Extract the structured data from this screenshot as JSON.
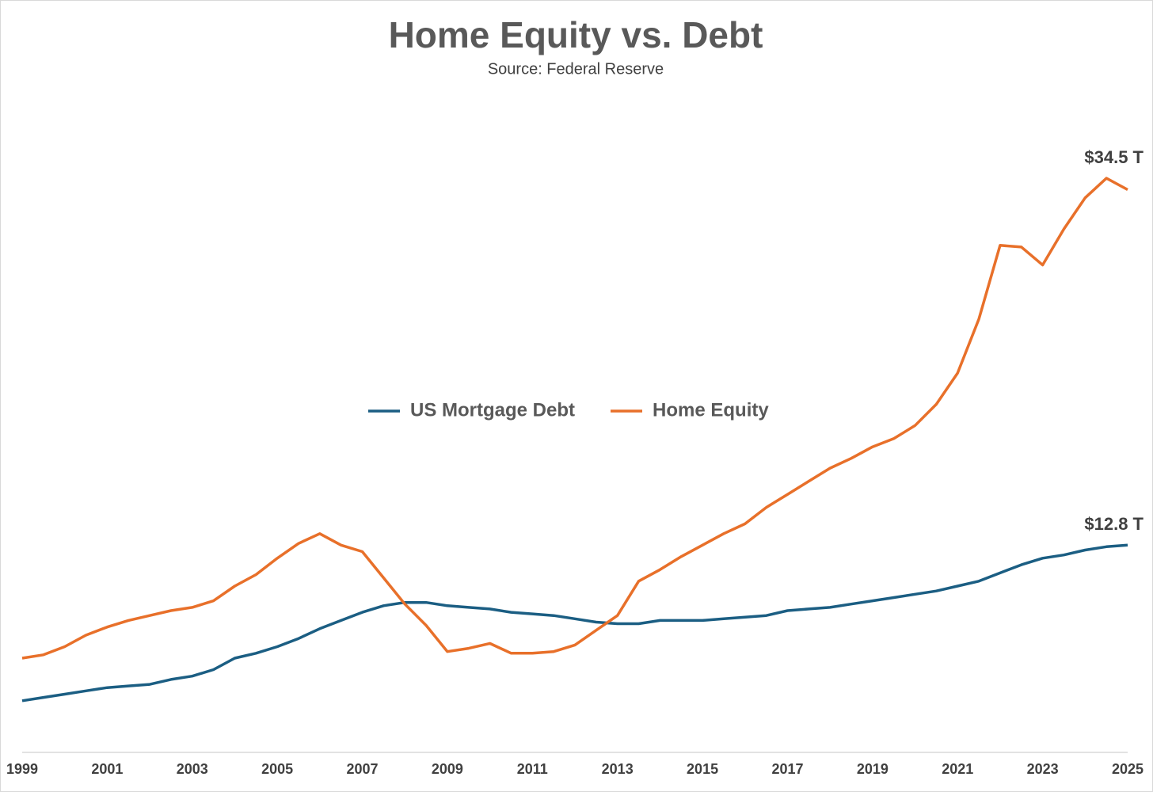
{
  "chart_data": {
    "type": "line",
    "title": "Home Equity vs. Debt",
    "subtitle": "Source: Federal Reserve",
    "x": [
      1999,
      1999.5,
      2000,
      2000.5,
      2001,
      2001.5,
      2002,
      2002.5,
      2003,
      2003.5,
      2004,
      2004.5,
      2005,
      2005.5,
      2006,
      2006.5,
      2007,
      2007.5,
      2008,
      2008.5,
      2009,
      2009.5,
      2010,
      2010.5,
      2011,
      2011.5,
      2012,
      2012.5,
      2013,
      2013.5,
      2014,
      2014.5,
      2015,
      2015.5,
      2016,
      2016.5,
      2017,
      2017.5,
      2018,
      2018.5,
      2019,
      2019.5,
      2020,
      2020.5,
      2021,
      2021.5,
      2022,
      2022.5,
      2023,
      2023.5,
      2024,
      2024.5,
      2025
    ],
    "xlim": [
      1999,
      2025
    ],
    "xticks": [
      1999,
      2001,
      2003,
      2005,
      2007,
      2009,
      2011,
      2013,
      2015,
      2017,
      2019,
      2021,
      2023,
      2025
    ],
    "legend": "center",
    "series": [
      {
        "name": "US Mortgage Debt",
        "color": "#1b5e83",
        "values": [
          3.3,
          3.5,
          3.7,
          3.9,
          4.1,
          4.2,
          4.3,
          4.6,
          4.8,
          5.2,
          5.9,
          6.2,
          6.6,
          7.1,
          7.7,
          8.2,
          8.7,
          9.1,
          9.3,
          9.3,
          9.1,
          9.0,
          8.9,
          8.7,
          8.6,
          8.5,
          8.3,
          8.1,
          8.0,
          8.0,
          8.2,
          8.2,
          8.2,
          8.3,
          8.4,
          8.5,
          8.8,
          8.9,
          9.0,
          9.2,
          9.4,
          9.6,
          9.8,
          10.0,
          10.3,
          10.6,
          11.1,
          11.6,
          12.0,
          12.2,
          12.5,
          12.7,
          12.8
        ],
        "value_labels": [
          null,
          null,
          null,
          null,
          null,
          null,
          null,
          null,
          null,
          null,
          null,
          null,
          null,
          null,
          null,
          null,
          null,
          null,
          null,
          null,
          null,
          null,
          null,
          null,
          null,
          null,
          null,
          null,
          null,
          null,
          null,
          null,
          null,
          null,
          null,
          null,
          null,
          null,
          null,
          null,
          null,
          null,
          null,
          null,
          null,
          null,
          null,
          null,
          null,
          null,
          null,
          null,
          "$12.8 T"
        ]
      },
      {
        "name": "Home Equity",
        "color": "#e8702a",
        "values": [
          5.9,
          6.1,
          6.6,
          7.3,
          7.8,
          8.2,
          8.5,
          8.8,
          9.0,
          9.4,
          10.3,
          11.0,
          12.0,
          12.9,
          13.5,
          12.8,
          12.4,
          10.8,
          9.2,
          7.9,
          6.3,
          6.5,
          6.8,
          6.2,
          6.2,
          6.3,
          6.7,
          7.6,
          8.5,
          10.6,
          11.3,
          12.1,
          12.8,
          13.5,
          14.1,
          15.1,
          15.9,
          16.7,
          17.5,
          18.1,
          18.8,
          19.3,
          20.1,
          21.4,
          23.3,
          26.6,
          31.1,
          31.0,
          29.9,
          32.1,
          34.0,
          35.2,
          34.5
        ],
        "value_labels": [
          null,
          null,
          null,
          null,
          null,
          null,
          null,
          null,
          null,
          null,
          null,
          null,
          null,
          null,
          null,
          null,
          null,
          null,
          null,
          null,
          null,
          null,
          null,
          null,
          null,
          null,
          null,
          null,
          null,
          null,
          null,
          null,
          null,
          null,
          null,
          null,
          null,
          null,
          null,
          null,
          null,
          null,
          null,
          null,
          null,
          null,
          null,
          null,
          null,
          null,
          null,
          null,
          "$34.5 T"
        ]
      }
    ]
  }
}
